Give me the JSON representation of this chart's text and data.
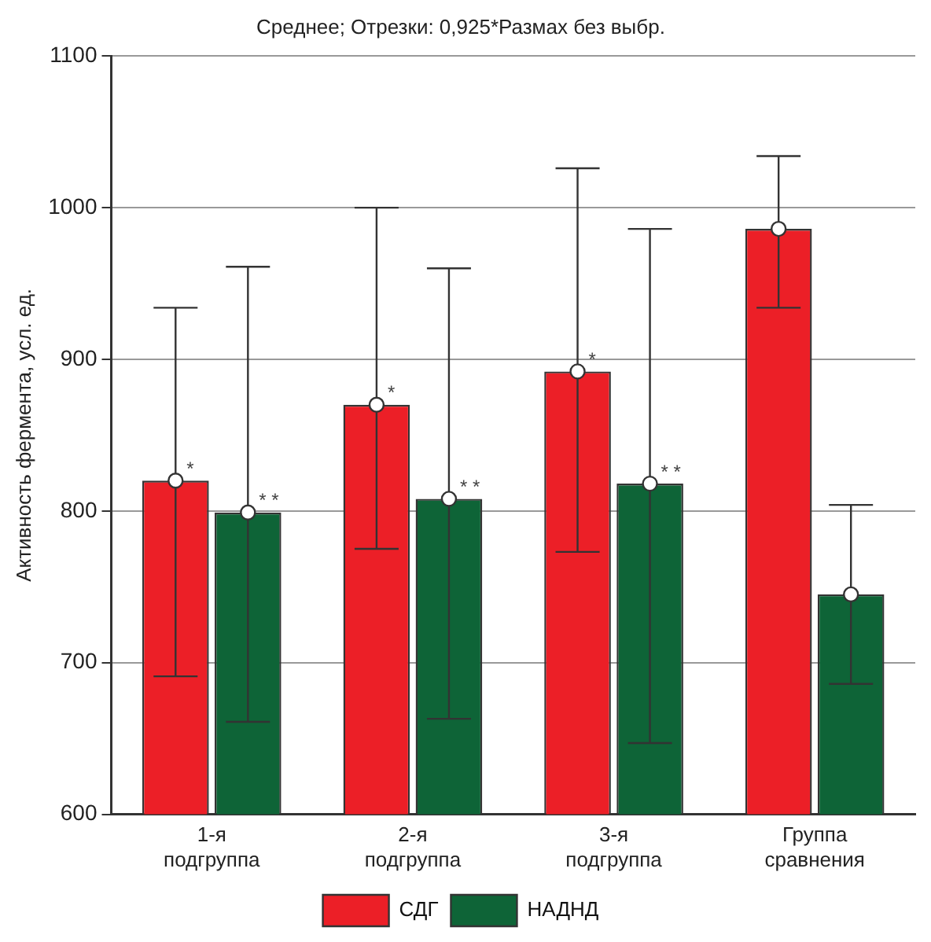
{
  "chart_data": {
    "type": "bar",
    "title": "Среднее; Отрезки: 0,925*Размах без выбр.",
    "ylabel": "Активность фермента, усл. ед.",
    "categories": [
      "1-я подгруппа",
      "2-я подгруппа",
      "3-я подгруппа",
      "Группа сравнения"
    ],
    "series": [
      {
        "name": "СДГ",
        "color": "#ec1f27",
        "values": [
          820,
          870,
          892,
          986
        ],
        "errors": [
          [
            691,
            934
          ],
          [
            775,
            1000
          ],
          [
            773,
            1026
          ],
          [
            934,
            1034
          ]
        ]
      },
      {
        "name": "НАДНД",
        "color": "#0e6437",
        "values": [
          799,
          808,
          818,
          745
        ],
        "errors": [
          [
            661,
            961
          ],
          [
            663,
            960
          ],
          [
            647,
            986
          ],
          [
            686,
            804
          ]
        ]
      },
      {
        "type": "scatter",
        "color": "#ffffff",
        "marker": "circle",
        "x": [
          "1-я подгруппа",
          "2-я подгруппа",
          "3-я подгруппа",
          "Группа сравнения"
        ],
        "values": [
          820,
          870,
          892,
          986
        ]
      },
      {
        "type": "scatter",
        "color": "#ffffff",
        "marker": "circle",
        "x": [
          "1-я подгруппа",
          "2-я подгруппа",
          "3-я подгруппа",
          "Группа сравнения"
        ],
        "values": [
          799,
          808,
          818,
          745
        ]
      }
    ],
    "ylim": [
      600,
      1100
    ],
    "yticks": [
      600,
      700,
      800,
      900,
      1000,
      1100
    ],
    "grid": "y",
    "legend": "bottom",
    "annotations": [
      {
        "text": "*",
        "x": "1-я подгруппа",
        "y": 820
      },
      {
        "text": "* *",
        "x": "1-я подгруппа",
        "y": 799
      },
      {
        "text": "*",
        "x": "2-я подгруппа",
        "y": 870
      },
      {
        "text": "* *",
        "x": "2-я подгруппа",
        "y": 808
      },
      {
        "text": "*",
        "x": "3-я подгруппа",
        "y": 892
      },
      {
        "text": "* *",
        "x": "3-я подгруппа",
        "y": 818
      }
    ]
  }
}
